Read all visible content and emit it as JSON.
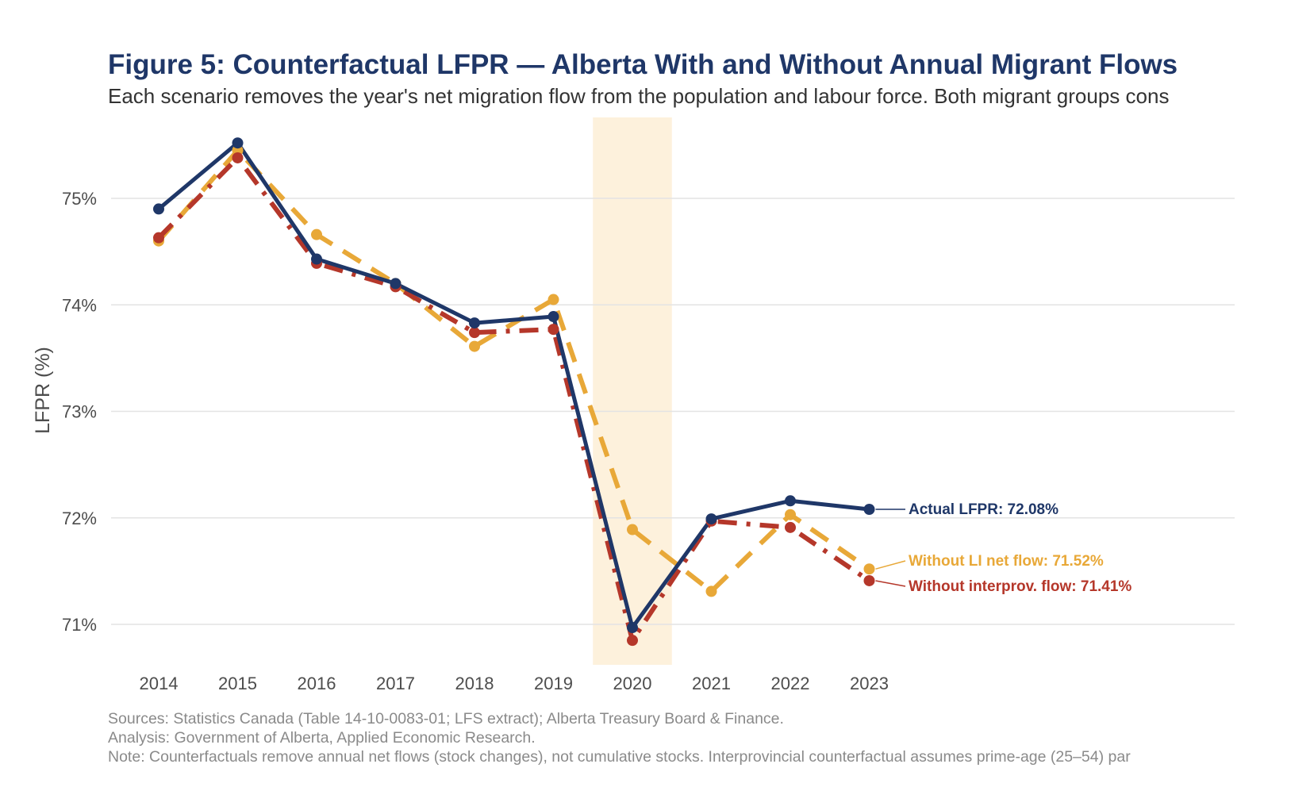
{
  "title": "Figure 5: Counterfactual LFPR — Alberta With and Without Annual Migrant Flows",
  "subtitle": "Each scenario removes the year's net migration flow from the population and labour force. Both migrant groups cons",
  "footer": {
    "sources": "Sources: Statistics Canada (Table 14-10-0083-01; LFS extract); Alberta Treasury Board & Finance.",
    "analysis": "Analysis: Government of Alberta, Applied Economic Research.",
    "note": "Note: Counterfactuals remove annual net flows (stock changes), not cumulative stocks. Interprovincial counterfactual assumes prime-age (25–54) par"
  },
  "chart_data": {
    "type": "line",
    "title": "Figure 5: Counterfactual LFPR — Alberta With and Without Annual Migrant Flows",
    "xlabel": "",
    "ylabel": "LFPR (%)",
    "x": [
      "2014",
      "2015",
      "2016",
      "2017",
      "2018",
      "2019",
      "2020",
      "2021",
      "2022",
      "2023"
    ],
    "ylim": [
      70.6,
      75.75
    ],
    "yticks": [
      71,
      72,
      73,
      74,
      75
    ],
    "ytick_labels": [
      "71%",
      "72%",
      "73%",
      "74%",
      "75%"
    ],
    "grid": "horizontal",
    "highlight_band": {
      "x": "2020"
    },
    "series": [
      {
        "key": "actual",
        "values": [
          74.9,
          75.52,
          74.43,
          74.2,
          73.83,
          73.89,
          70.97,
          71.99,
          72.16,
          72.08
        ],
        "color": "#1f3768",
        "style": "solid",
        "label": "Actual LFPR: 72.08%"
      },
      {
        "key": "without_li",
        "values": [
          74.6,
          75.45,
          74.66,
          74.2,
          73.61,
          74.05,
          71.89,
          71.31,
          72.03,
          71.52
        ],
        "color": "#e8a838",
        "style": "dashed",
        "label": "Without LI net flow: 71.52%"
      },
      {
        "key": "without_interprov",
        "values": [
          74.63,
          75.38,
          74.39,
          74.17,
          73.74,
          73.77,
          70.85,
          71.97,
          71.91,
          71.41
        ],
        "color": "#b5372a",
        "style": "dashdot",
        "label": "Without interprov. flow: 71.41%"
      }
    ]
  }
}
